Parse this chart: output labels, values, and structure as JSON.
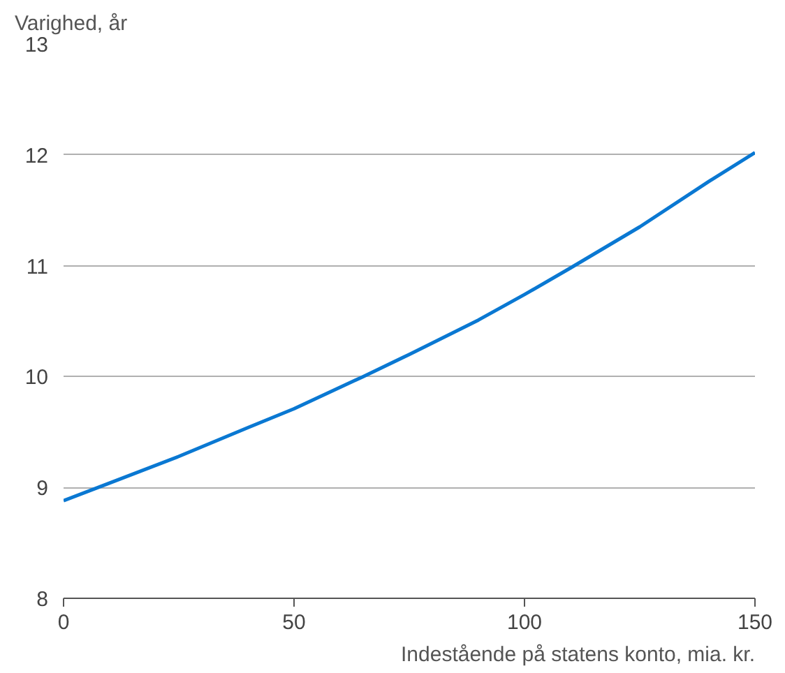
{
  "chart_data": {
    "type": "line",
    "ylabel": "Varighed, år",
    "xlabel": "Indestående på statens konto, mia. kr.",
    "x": [
      0,
      10,
      25,
      40,
      50,
      65,
      75,
      90,
      100,
      110,
      125,
      140,
      150
    ],
    "series": [
      {
        "color": "#0a78d2",
        "values": [
          8.88,
          9.04,
          9.28,
          9.54,
          9.71,
          10.0,
          10.2,
          10.51,
          10.74,
          10.98,
          11.35,
          11.76,
          12.02
        ]
      }
    ],
    "xlim": [
      0,
      150
    ],
    "xticks": [
      0,
      50,
      100,
      150
    ],
    "ylim": [
      8,
      13
    ],
    "yticks": [
      8,
      9,
      10,
      11,
      12,
      13
    ],
    "grid": "y"
  }
}
